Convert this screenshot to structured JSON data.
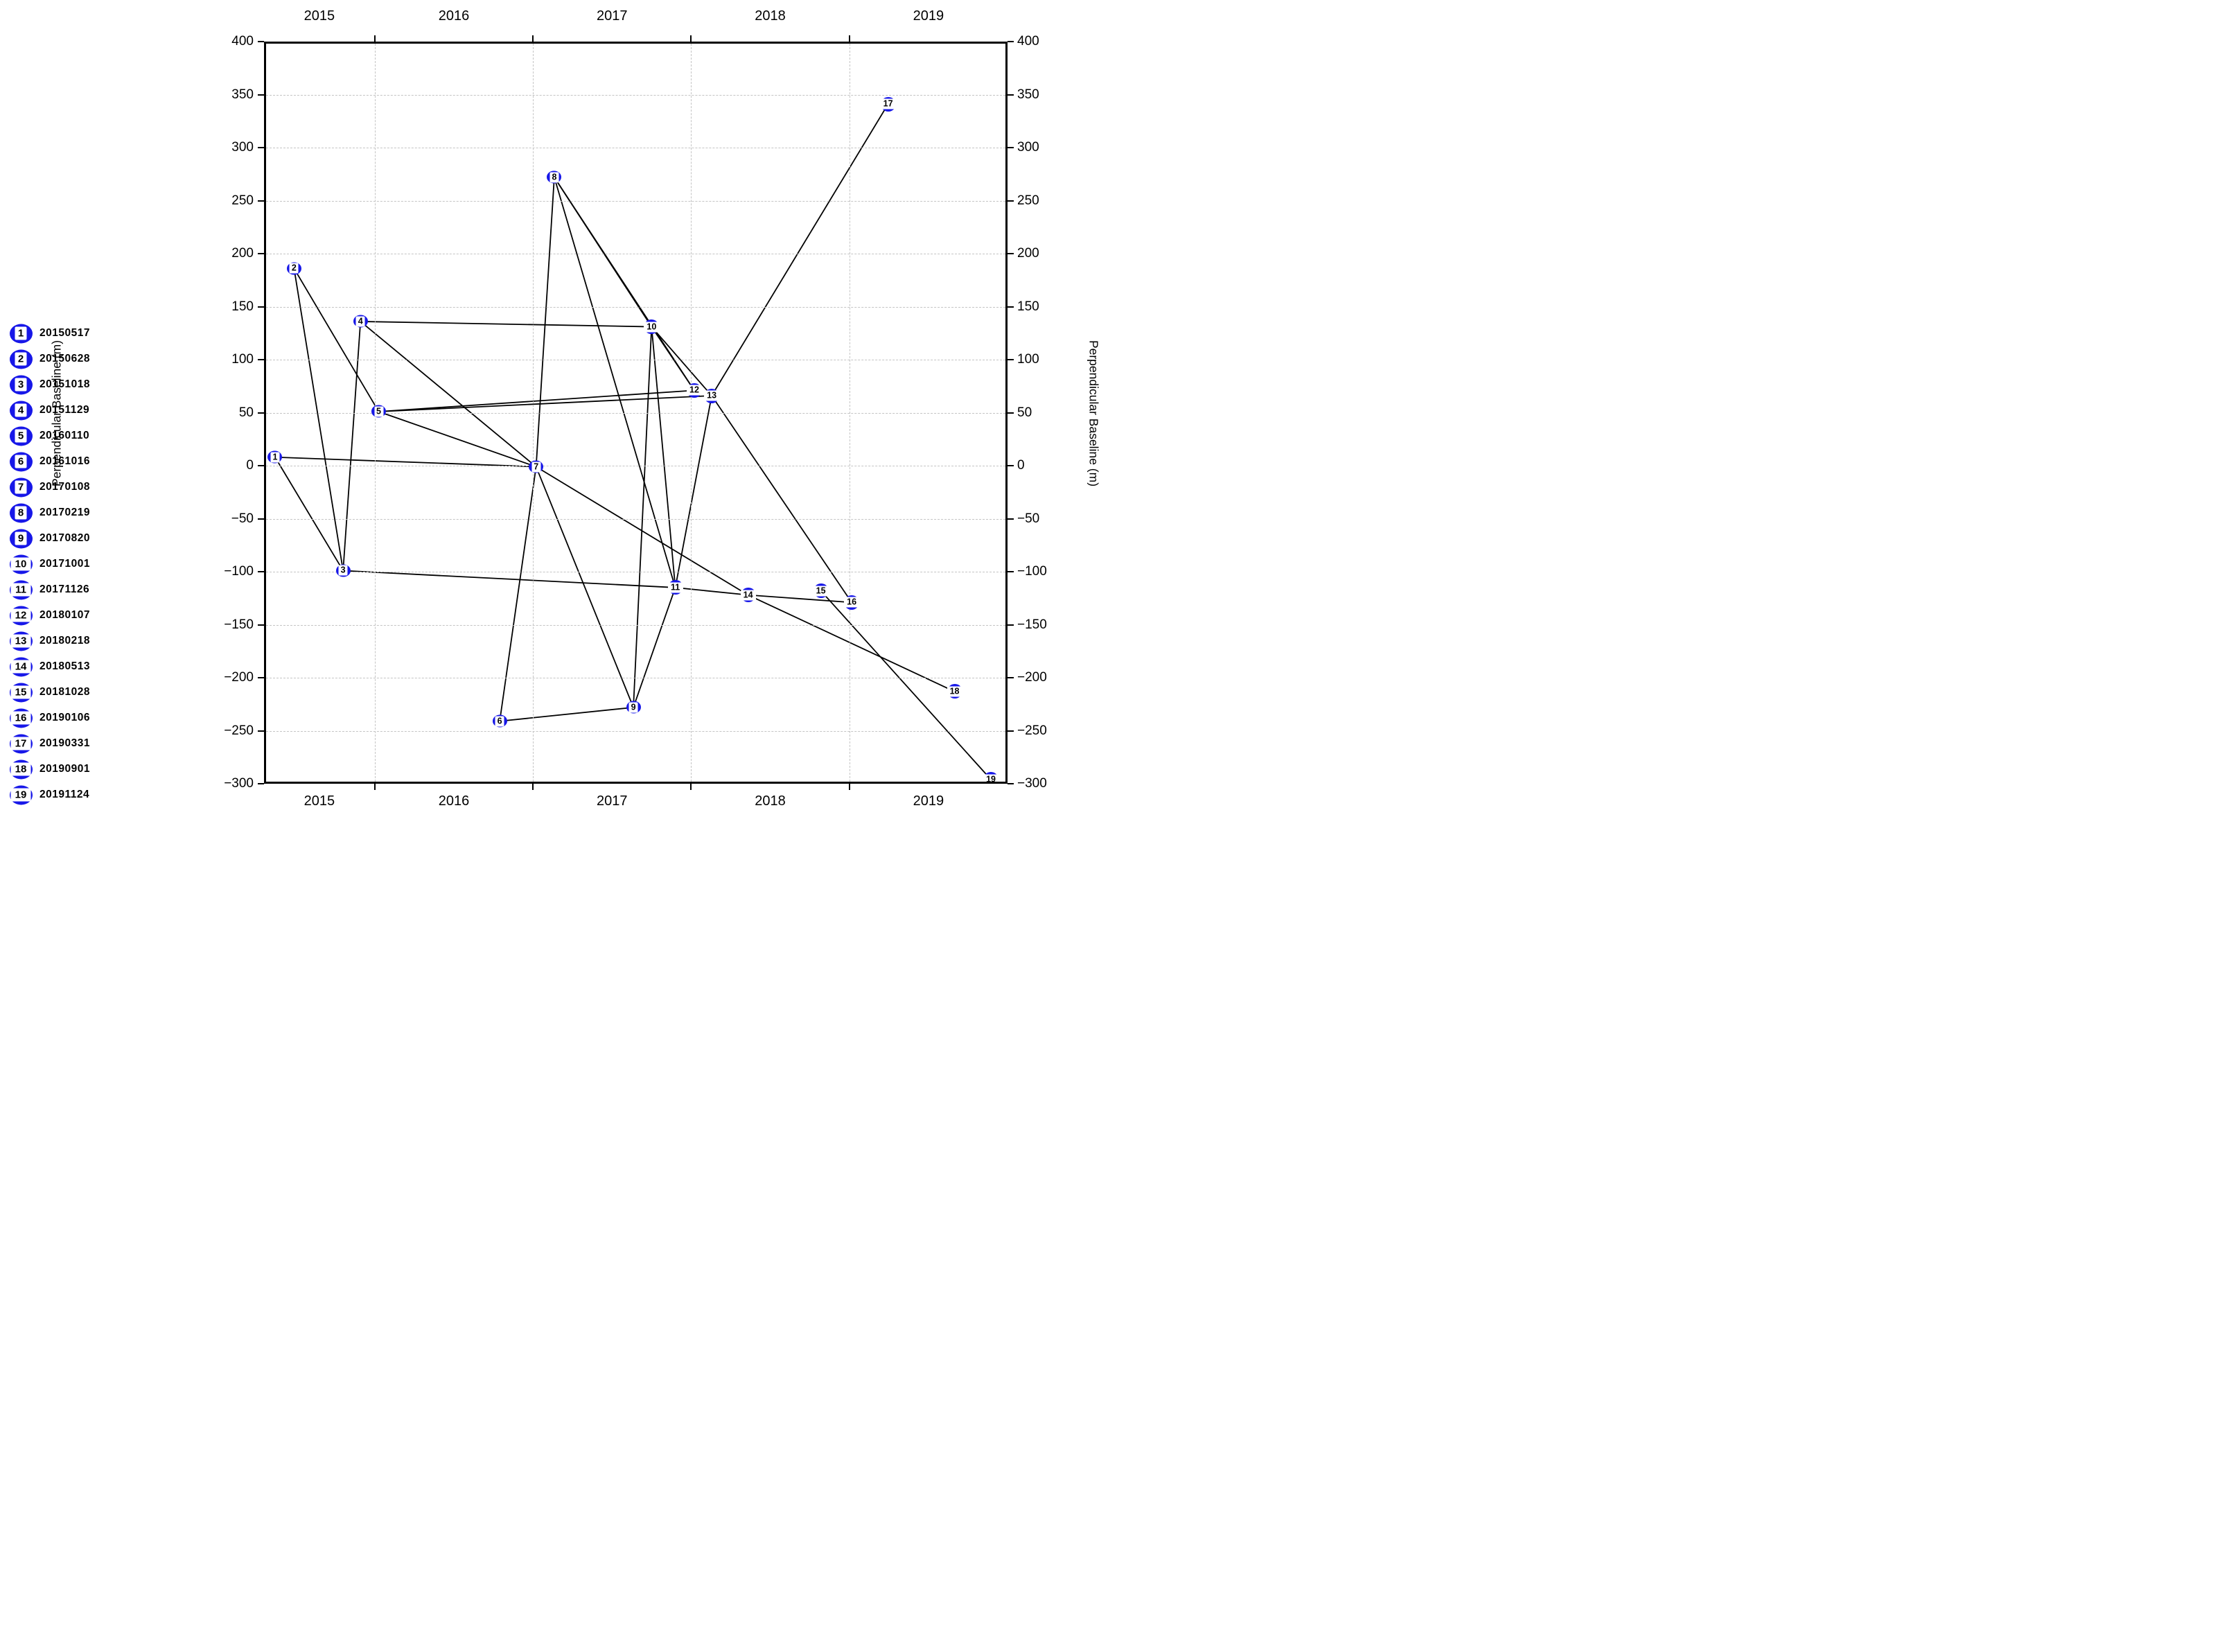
{
  "chart_data": {
    "type": "scatter",
    "title": "",
    "ylabel": "Perpendicular Baseline (m)",
    "xlabel": "",
    "xlim": [
      2015.3,
      2020.0
    ],
    "ylim": [
      -300,
      400
    ],
    "grid": true,
    "legend_position": "left",
    "x_year_ticks": [
      2016,
      2017,
      2018,
      2019
    ],
    "x_year_labels": [
      "2015",
      "2016",
      "2017",
      "2018",
      "2019"
    ],
    "ytick_values": [
      400,
      350,
      300,
      250,
      200,
      150,
      100,
      50,
      0,
      -50,
      -100,
      -150,
      -200,
      -250,
      -300
    ],
    "ytick_labels": [
      "400",
      "350",
      "300",
      "250",
      "200",
      "150",
      "100",
      "50",
      "0",
      "−50",
      "−100",
      "−150",
      "−200",
      "−250",
      "−300"
    ],
    "ygrid_values": [
      350,
      300,
      250,
      200,
      150,
      100,
      50,
      0,
      -50,
      -100,
      -150,
      -200,
      -250
    ],
    "points": [
      {
        "id": 1,
        "date": "20150517",
        "t": 2015.37,
        "bperp": 8
      },
      {
        "id": 2,
        "date": "20150628",
        "t": 2015.49,
        "bperp": 186
      },
      {
        "id": 3,
        "date": "20151018",
        "t": 2015.8,
        "bperp": -99
      },
      {
        "id": 4,
        "date": "20151129",
        "t": 2015.91,
        "bperp": 136
      },
      {
        "id": 5,
        "date": "20160110",
        "t": 2016.025,
        "bperp": 51
      },
      {
        "id": 6,
        "date": "20161016",
        "t": 2016.79,
        "bperp": -241
      },
      {
        "id": 7,
        "date": "20170108",
        "t": 2017.02,
        "bperp": -1
      },
      {
        "id": 8,
        "date": "20170219",
        "t": 2017.135,
        "bperp": 272
      },
      {
        "id": 9,
        "date": "20170820",
        "t": 2017.635,
        "bperp": -228
      },
      {
        "id": 10,
        "date": "20171001",
        "t": 2017.75,
        "bperp": 131
      },
      {
        "id": 11,
        "date": "20171126",
        "t": 2017.9,
        "bperp": -115
      },
      {
        "id": 12,
        "date": "20180107",
        "t": 2018.02,
        "bperp": 71
      },
      {
        "id": 13,
        "date": "20180218",
        "t": 2018.13,
        "bperp": 66
      },
      {
        "id": 14,
        "date": "20180513",
        "t": 2018.36,
        "bperp": -122
      },
      {
        "id": 15,
        "date": "20181028",
        "t": 2018.82,
        "bperp": -118
      },
      {
        "id": 16,
        "date": "20190106",
        "t": 2019.015,
        "bperp": -129
      },
      {
        "id": 17,
        "date": "20190331",
        "t": 2019.245,
        "bperp": 341
      },
      {
        "id": 18,
        "date": "20190901",
        "t": 2019.665,
        "bperp": -213
      },
      {
        "id": 19,
        "date": "20191124",
        "t": 2019.895,
        "bperp": -296
      }
    ],
    "pairs": [
      [
        1,
        3
      ],
      [
        1,
        7
      ],
      [
        2,
        3
      ],
      [
        2,
        5
      ],
      [
        3,
        4
      ],
      [
        3,
        11
      ],
      [
        4,
        7
      ],
      [
        4,
        10
      ],
      [
        5,
        7
      ],
      [
        5,
        12
      ],
      [
        5,
        13
      ],
      [
        6,
        7
      ],
      [
        6,
        9
      ],
      [
        7,
        8
      ],
      [
        7,
        9
      ],
      [
        7,
        14
      ],
      [
        8,
        10
      ],
      [
        8,
        11
      ],
      [
        8,
        12
      ],
      [
        9,
        10
      ],
      [
        9,
        11
      ],
      [
        10,
        11
      ],
      [
        10,
        12
      ],
      [
        10,
        13
      ],
      [
        11,
        13
      ],
      [
        11,
        14
      ],
      [
        13,
        16
      ],
      [
        13,
        17
      ],
      [
        14,
        16
      ],
      [
        14,
        18
      ],
      [
        15,
        19
      ]
    ],
    "colors": {
      "marker": "#1717e8",
      "line": "#000000",
      "grid": "#c4c4c4",
      "text": "#000000"
    }
  },
  "legend": {
    "items": [
      {
        "id": 1,
        "date": "20150517"
      },
      {
        "id": 2,
        "date": "20150628"
      },
      {
        "id": 3,
        "date": "20151018"
      },
      {
        "id": 4,
        "date": "20151129"
      },
      {
        "id": 5,
        "date": "20160110"
      },
      {
        "id": 6,
        "date": "20161016"
      },
      {
        "id": 7,
        "date": "20170108"
      },
      {
        "id": 8,
        "date": "20170219"
      },
      {
        "id": 9,
        "date": "20170820"
      },
      {
        "id": 10,
        "date": "20171001"
      },
      {
        "id": 11,
        "date": "20171126"
      },
      {
        "id": 12,
        "date": "20180107"
      },
      {
        "id": 13,
        "date": "20180218"
      },
      {
        "id": 14,
        "date": "20180513"
      },
      {
        "id": 15,
        "date": "20181028"
      },
      {
        "id": 16,
        "date": "20190106"
      },
      {
        "id": 17,
        "date": "20190331"
      },
      {
        "id": 18,
        "date": "20190901"
      },
      {
        "id": 19,
        "date": "20191124"
      }
    ]
  }
}
